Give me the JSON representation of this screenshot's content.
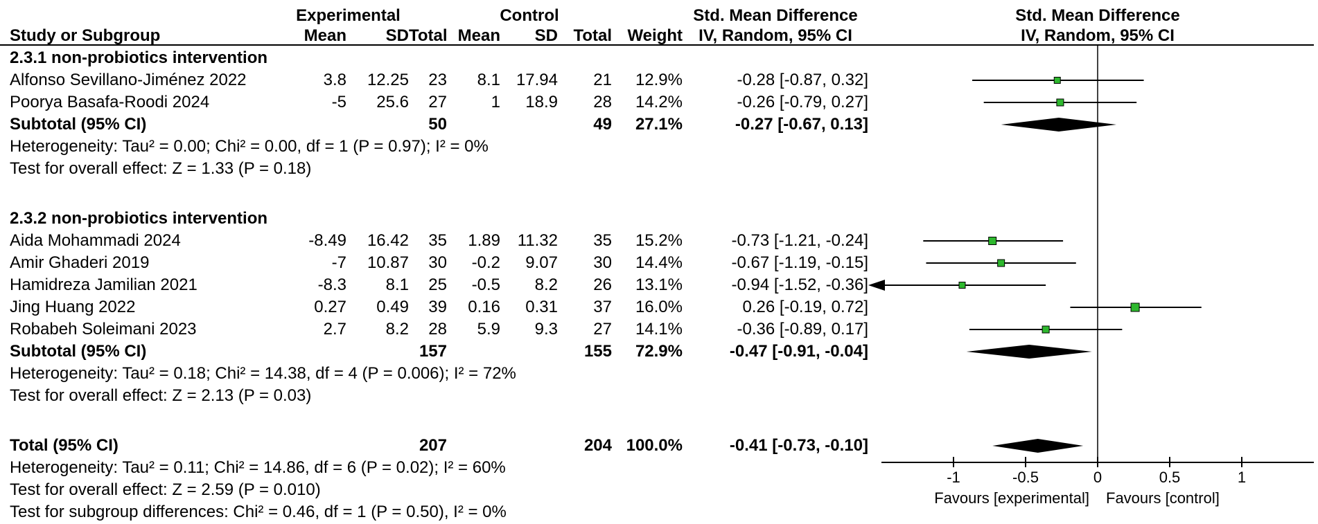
{
  "header": {
    "group_experimental": "Experimental",
    "group_control": "Control",
    "smd_left_line1": "Std. Mean Difference",
    "smd_left_line2": "IV, Random, 95% CI",
    "smd_right_line1": "Std. Mean Difference",
    "smd_right_line2": "IV, Random, 95% CI",
    "study": "Study or Subgroup",
    "mean": "Mean",
    "sd": "SD",
    "total": "Total",
    "weight": "Weight"
  },
  "colors": {
    "marker_green": "#2eb82e",
    "diamond_black": "#000000",
    "line_black": "#000000",
    "text": "#000000",
    "background": "#ffffff"
  },
  "chart_data": {
    "type": "forest",
    "effect_measure": "Std. Mean Difference",
    "method": "IV, Random, 95% CI",
    "axis": {
      "min": -1.5,
      "max": 1.5,
      "ticks": [
        {
          "v": -1,
          "label": "-1"
        },
        {
          "v": -0.5,
          "label": "-0.5"
        },
        {
          "v": 0,
          "label": "0"
        },
        {
          "v": 0.5,
          "label": "0.5"
        },
        {
          "v": 1,
          "label": "1"
        }
      ],
      "favours_left": "Favours [experimental]",
      "favours_right": "Favours [control]"
    },
    "sections": [
      {
        "label": "2.3.1 non-probiotics intervention",
        "studies": [
          {
            "name": "Alfonso Sevillano-Jiménez 2022",
            "mean_e": "3.8",
            "sd_e": "12.25",
            "total_e": "23",
            "mean_c": "8.1",
            "sd_c": "17.94",
            "total_c": "21",
            "weight": "12.9%",
            "weight_value": 12.9,
            "ci_text": "-0.28 [-0.87, 0.32]",
            "est": -0.28,
            "lo": -0.87,
            "hi": 0.32
          },
          {
            "name": "Poorya Basafa-Roodi 2024",
            "mean_e": "-5",
            "sd_e": "25.6",
            "total_e": "27",
            "mean_c": "1",
            "sd_c": "18.9",
            "total_c": "28",
            "weight": "14.2%",
            "weight_value": 14.2,
            "ci_text": "-0.26 [-0.79, 0.27]",
            "est": -0.26,
            "lo": -0.79,
            "hi": 0.27
          }
        ],
        "subtotal": {
          "label": "Subtotal (95% CI)",
          "total_e": "50",
          "total_c": "49",
          "weight": "27.1%",
          "ci_text": "-0.27 [-0.67, 0.13]",
          "est": -0.27,
          "lo": -0.67,
          "hi": 0.13
        },
        "heterogeneity": "Heterogeneity: Tau² = 0.00; Chi² = 0.00, df = 1 (P = 0.97); I² = 0%",
        "overall_effect": "Test for overall effect: Z = 1.33 (P = 0.18)"
      },
      {
        "label": "2.3.2 non-probiotics intervention",
        "studies": [
          {
            "name": "Aida Mohammadi 2024",
            "mean_e": "-8.49",
            "sd_e": "16.42",
            "total_e": "35",
            "mean_c": "1.89",
            "sd_c": "11.32",
            "total_c": "35",
            "weight": "15.2%",
            "weight_value": 15.2,
            "ci_text": "-0.73 [-1.21, -0.24]",
            "est": -0.73,
            "lo": -1.21,
            "hi": -0.24
          },
          {
            "name": "Amir Ghaderi 2019",
            "mean_e": "-7",
            "sd_e": "10.87",
            "total_e": "30",
            "mean_c": "-0.2",
            "sd_c": "9.07",
            "total_c": "30",
            "weight": "14.4%",
            "weight_value": 14.4,
            "ci_text": "-0.67 [-1.19, -0.15]",
            "est": -0.67,
            "lo": -1.19,
            "hi": -0.15
          },
          {
            "name": "Hamidreza Jamilian 2021",
            "mean_e": "-8.3",
            "sd_e": "8.1",
            "total_e": "25",
            "mean_c": "-0.5",
            "sd_c": "8.2",
            "total_c": "26",
            "weight": "13.1%",
            "weight_value": 13.1,
            "ci_text": "-0.94 [-1.52, -0.36]",
            "est": -0.94,
            "lo": -1.52,
            "hi": -0.36
          },
          {
            "name": "Jing Huang 2022",
            "mean_e": "0.27",
            "sd_e": "0.49",
            "total_e": "39",
            "mean_c": "0.16",
            "sd_c": "0.31",
            "total_c": "37",
            "weight": "16.0%",
            "weight_value": 16.0,
            "ci_text": "0.26 [-0.19, 0.72]",
            "est": 0.26,
            "lo": -0.19,
            "hi": 0.72
          },
          {
            "name": "Robabeh Soleimani 2023",
            "mean_e": "2.7",
            "sd_e": "8.2",
            "total_e": "28",
            "mean_c": "5.9",
            "sd_c": "9.3",
            "total_c": "27",
            "weight": "14.1%",
            "weight_value": 14.1,
            "ci_text": "-0.36 [-0.89, 0.17]",
            "est": -0.36,
            "lo": -0.89,
            "hi": 0.17
          }
        ],
        "subtotal": {
          "label": "Subtotal (95% CI)",
          "total_e": "157",
          "total_c": "155",
          "weight": "72.9%",
          "ci_text": "-0.47 [-0.91, -0.04]",
          "est": -0.47,
          "lo": -0.91,
          "hi": -0.04
        },
        "heterogeneity": "Heterogeneity: Tau² = 0.18; Chi² = 14.38, df = 4 (P = 0.006); I² = 72%",
        "overall_effect": "Test for overall effect: Z = 2.13 (P = 0.03)"
      }
    ],
    "total": {
      "label": "Total (95% CI)",
      "total_e": "207",
      "total_c": "204",
      "weight": "100.0%",
      "ci_text": "-0.41 [-0.73, -0.10]",
      "est": -0.41,
      "lo": -0.73,
      "hi": -0.1
    },
    "total_footnotes": [
      "Heterogeneity: Tau² = 0.11; Chi² = 14.86, df = 6 (P = 0.02); I² = 60%",
      "Test for overall effect: Z = 2.59 (P = 0.010)",
      "Test for subgroup differences: Chi² = 0.46, df = 1 (P = 0.50), I² = 0%"
    ]
  }
}
